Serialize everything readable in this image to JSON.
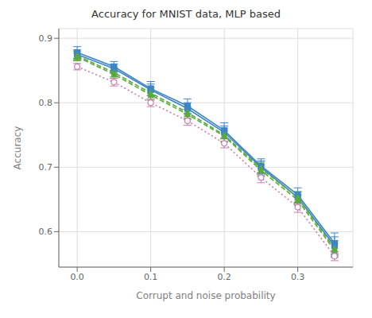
{
  "chart_data": {
    "type": "line",
    "title": "Accuracy for MNIST data, MLP based",
    "x_label": "Corrupt and noise probability",
    "y_label": "Accuracy",
    "xlim": [
      -0.025,
      0.375
    ],
    "ylim": [
      0.545,
      0.915
    ],
    "xticks": [
      {
        "value": 0.0,
        "label": "0.0"
      },
      0.1,
      0.2,
      0.3
    ],
    "yticks": [
      0.6,
      0.7,
      0.8,
      0.9
    ],
    "grid": true,
    "x": [
      0.0,
      0.05,
      0.1,
      0.15,
      0.2,
      0.25,
      0.3,
      0.35
    ],
    "series": [
      {
        "color": "#3d85c8",
        "line_style": "solid",
        "marker": "square",
        "values": [
          0.878,
          0.856,
          0.822,
          0.795,
          0.757,
          0.702,
          0.657,
          0.582
        ],
        "errors": [
          0.009,
          0.008,
          0.011,
          0.011,
          0.012,
          0.011,
          0.011,
          0.016
        ]
      },
      {
        "color": "#3d85c8",
        "line_style": "solid",
        "marker": "square",
        "values": [
          0.875,
          0.853,
          0.82,
          0.791,
          0.754,
          0.7,
          0.653,
          0.578
        ],
        "errors": [
          0.007,
          0.007,
          0.009,
          0.009,
          0.01,
          0.01,
          0.009,
          0.014
        ]
      },
      {
        "color": "#5aaa3a",
        "line_style": "dashed",
        "marker": "triangle",
        "values": [
          0.873,
          0.847,
          0.815,
          0.785,
          0.75,
          0.698,
          0.653,
          0.574
        ],
        "errors": [
          0.007,
          0.007,
          0.009,
          0.009,
          0.01,
          0.01,
          0.009,
          0.012
        ]
      },
      {
        "color": "#5aaa3a",
        "line_style": "dashed",
        "marker": "triangle",
        "values": [
          0.871,
          0.844,
          0.812,
          0.782,
          0.748,
          0.695,
          0.649,
          0.571
        ],
        "errors": [
          0.006,
          0.006,
          0.008,
          0.008,
          0.009,
          0.009,
          0.008,
          0.011
        ]
      },
      {
        "color": "#c97bb2",
        "line_style": "dotted",
        "marker": "circle-open",
        "values": [
          0.856,
          0.832,
          0.8,
          0.772,
          0.737,
          0.684,
          0.638,
          0.562
        ],
        "errors": [
          0.005,
          0.006,
          0.006,
          0.007,
          0.007,
          0.008,
          0.008,
          0.007
        ]
      }
    ]
  }
}
